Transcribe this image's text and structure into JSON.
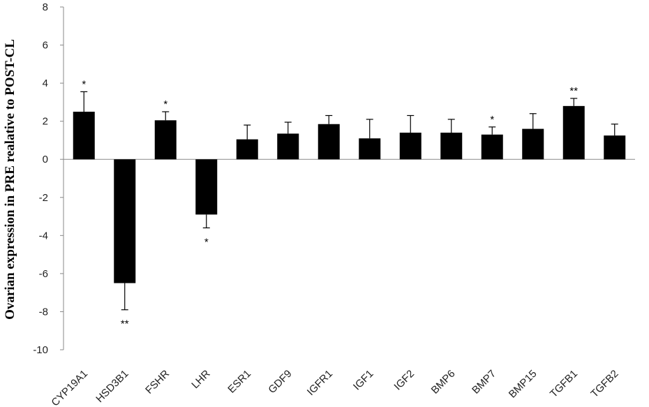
{
  "chart_data": {
    "type": "bar",
    "ylabel": "Ovarian expression  in PRE realative  to POST-CL",
    "xlabel": "",
    "title": "",
    "ylim": [
      -10,
      8
    ],
    "yticks": [
      8,
      6,
      4,
      2,
      0,
      -2,
      -4,
      -6,
      -8,
      -10
    ],
    "categories": [
      "CYP19A1",
      "HSD3B1",
      "FSHR",
      "LHR",
      "ESR1",
      "GDF9",
      "IGFR1",
      "IGF1",
      "IGF2",
      "BMP6",
      "BMP7",
      "BMP15",
      "TGFB1",
      "TGFB2"
    ],
    "values": [
      2.5,
      -6.5,
      2.05,
      -2.9,
      1.05,
      1.35,
      1.85,
      1.1,
      1.4,
      1.4,
      1.3,
      1.6,
      2.8,
      1.25
    ],
    "errors": [
      1.05,
      1.4,
      0.45,
      0.7,
      0.75,
      0.6,
      0.45,
      1.0,
      0.9,
      0.7,
      0.4,
      0.8,
      0.4,
      0.6
    ],
    "significance": [
      "*",
      "**",
      "*",
      "*",
      "",
      "",
      "",
      "",
      "",
      "",
      "*",
      "",
      "**",
      ""
    ],
    "bar_color": "#000000",
    "grid": false
  }
}
